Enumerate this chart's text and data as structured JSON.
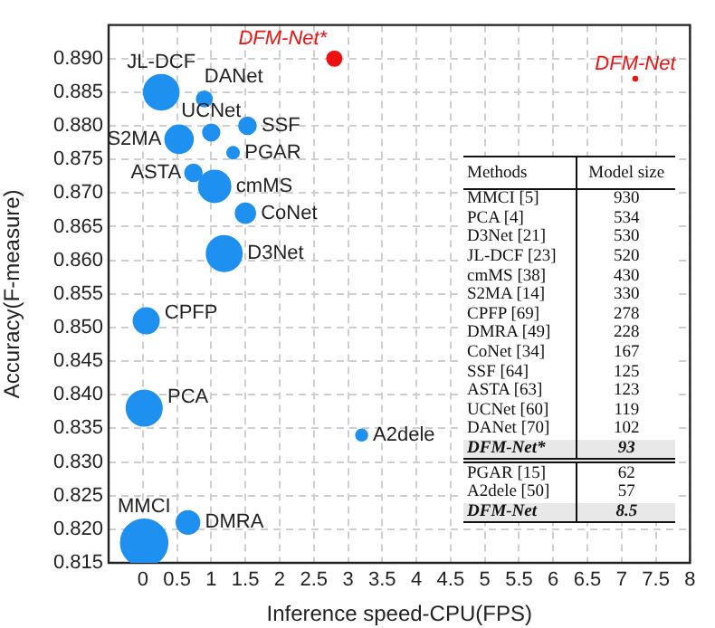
{
  "chart_data": {
    "type": "bubble",
    "xlabel": "Inference speed-CPU(FPS)",
    "ylabel": "Accuracy(F-measure)",
    "xlim": [
      -0.5,
      8
    ],
    "xticks": [
      0,
      0.5,
      1,
      1.5,
      2,
      2.5,
      3,
      3.5,
      4,
      4.5,
      5,
      5.5,
      6,
      6.5,
      7,
      7.5,
      8
    ],
    "ylim": [
      0.815,
      0.895
    ],
    "yticks": [
      0.815,
      {
        "value": 0.82,
        "label": "0.820"
      },
      0.825,
      {
        "value": 0.83,
        "label": "0.830"
      },
      0.835,
      {
        "value": 0.84,
        "label": "0.840"
      },
      0.845,
      {
        "value": 0.85,
        "label": "0.850"
      },
      0.855,
      {
        "value": 0.86,
        "label": "0.860"
      },
      0.865,
      {
        "value": 0.87,
        "label": "0.870"
      },
      0.875,
      {
        "value": 0.88,
        "label": "0.880"
      },
      0.885,
      {
        "value": 0.89,
        "label": "0.890"
      }
    ],
    "grid": true,
    "legend": false,
    "series": [
      {
        "color": "#1e90f0",
        "x": [
          0.02,
          0.02,
          1.19,
          0.27,
          1.05,
          0.53,
          0.05,
          0.66,
          1.5,
          1.53,
          0.74,
          1.0,
          0.9,
          2.8,
          1.32,
          3.2,
          7.2
        ],
        "values": [
          0.818,
          0.838,
          0.861,
          0.885,
          0.871,
          0.878,
          0.851,
          0.821,
          0.867,
          0.88,
          0.873,
          0.879,
          0.884,
          0.89,
          0.876,
          0.834,
          0.887
        ],
        "sizes": [
          1,
          0.574,
          0.57,
          0.559,
          0.462,
          0.355,
          0.299,
          0.245,
          0.18,
          0.134,
          0.132,
          0.128,
          0.11,
          0.1,
          0.067,
          0.061,
          0.009
        ],
        "colors": [
          "#1e90f0",
          "#1e90f0",
          "#1e90f0",
          "#1e90f0",
          "#1e90f0",
          "#1e90f0",
          "#1e90f0",
          "#1e90f0",
          "#1e90f0",
          "#1e90f0",
          "#1e90f0",
          "#1e90f0",
          "#1e90f0",
          "#ee1111",
          "#1e90f0",
          "#1e90f0",
          "#ee1111"
        ],
        "value_labels": [
          "MMCI",
          "PCA",
          "D3Net",
          "JL-DCF",
          "cmMS",
          "S2MA",
          "CPFP",
          "DMRA",
          "CoNet",
          "SSF",
          "ASTA",
          "UCNet",
          "DANet",
          "DFM-Net*",
          "PGAR",
          "A2dele",
          "DFM-Net"
        ]
      }
    ],
    "annotations": [
      "Methods",
      "Model size",
      "MMCI [5]",
      "930",
      "PCA [4]",
      "534",
      "D3Net [21]",
      "530",
      "JL-DCF [23]",
      "520",
      "cmMS [38]",
      "430",
      "S2MA [14]",
      "330",
      "CPFP [69]",
      "278",
      "DMRA [49]",
      "228",
      "CoNet [34]",
      "167",
      "SSF [64]",
      "125",
      "ASTA [63]",
      "123",
      "UCNet [60]",
      "119",
      "DANet [70]",
      "102",
      "DFM-Net*",
      "93",
      "PGAR [15]",
      "62",
      "A2dele [50]",
      "57",
      "DFM-Net",
      "8.5"
    ]
  }
}
